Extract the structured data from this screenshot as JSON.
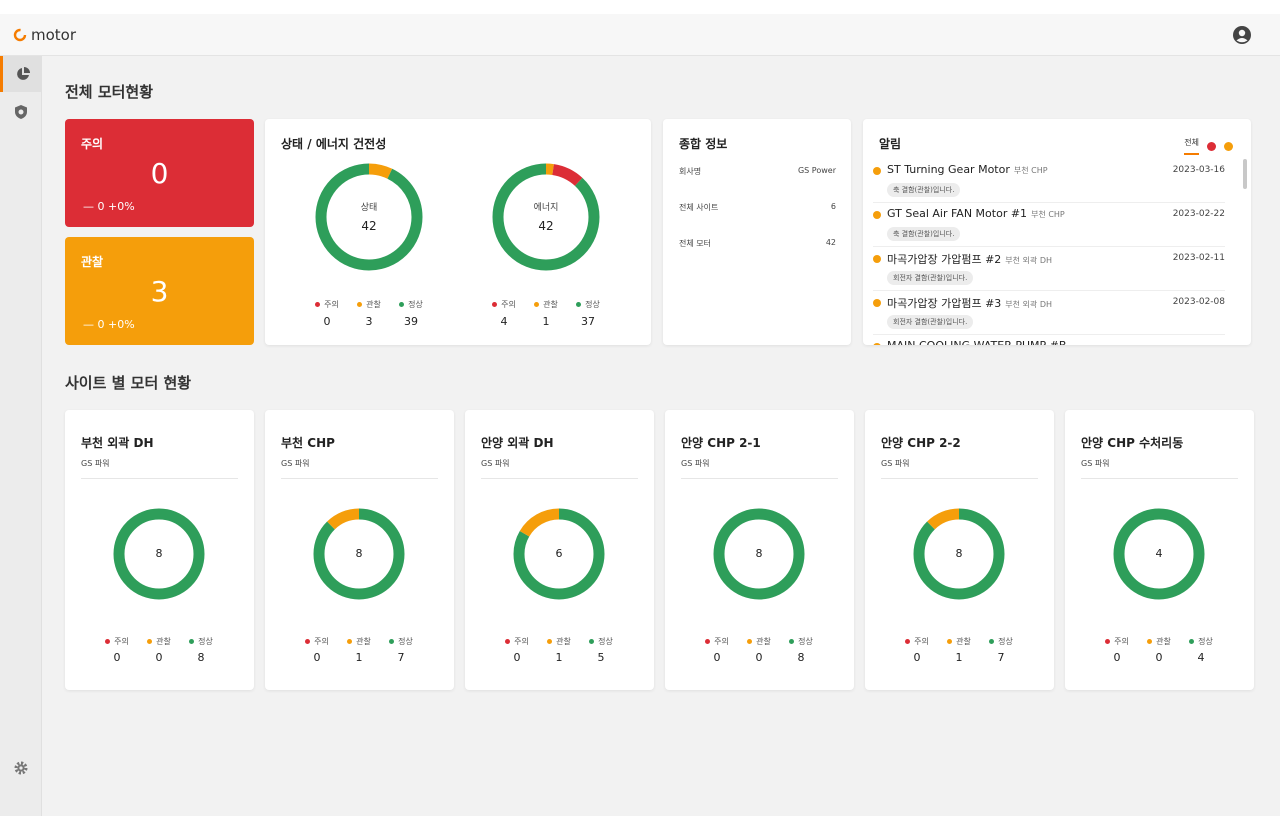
{
  "app": {
    "name": "motor"
  },
  "colors": {
    "danger": "#dc2d36",
    "warning": "#f59e0b",
    "normal": "#2e9e5a",
    "accent": "#f57c00"
  },
  "sidebar": {
    "items": [
      {
        "icon": "pie-chart-icon",
        "active": true
      },
      {
        "icon": "shield-icon",
        "active": false
      },
      {
        "icon": "gear-icon",
        "active": false
      }
    ]
  },
  "overview": {
    "title": "전체 모터현황",
    "danger": {
      "label": "주의",
      "value": "0",
      "delta": "— 0  +0%"
    },
    "warning": {
      "label": "관찰",
      "value": "3",
      "delta": "— 0  +0%"
    },
    "health": {
      "title": "상태 / 에너지 건전성",
      "donuts": [
        {
          "label": "상태",
          "total": "42",
          "danger": 0,
          "warning": 3,
          "normal": 39
        },
        {
          "label": "에너지",
          "total": "42",
          "danger": 4,
          "warning": 1,
          "normal": 37
        }
      ]
    },
    "legend": {
      "danger": "주의",
      "warning": "관찰",
      "normal": "정상"
    },
    "info": {
      "title": "종합 정보",
      "rows": [
        {
          "label": "회사명",
          "value": "GS Power"
        },
        {
          "label": "전체 사이트",
          "value": "6"
        },
        {
          "label": "전체 모터",
          "value": "42"
        }
      ]
    },
    "alerts": {
      "title": "알림",
      "tab_all": "전체",
      "items": [
        {
          "name": "ST Turning Gear Motor",
          "site": "부천 CHP",
          "date": "2023-03-16",
          "tag": "축 결함(관찰)입니다."
        },
        {
          "name": "GT Seal Air FAN Motor #1",
          "site": "부천 CHP",
          "date": "2023-02-22",
          "tag": "축 결함(관찰)입니다."
        },
        {
          "name": "마곡가압장 가압펌프 #2",
          "site": "부천 외곽 DH",
          "date": "2023-02-11",
          "tag": "회전자 결함(관찰)입니다."
        },
        {
          "name": "마곡가압장 가압펌프 #3",
          "site": "부천 외곽 DH",
          "date": "2023-02-08",
          "tag": "회전자 결함(관찰)입니다."
        },
        {
          "name": "MAIN COOLING WATER PUMP #B",
          "site": "",
          "date": "",
          "tag": ""
        }
      ]
    }
  },
  "sites": {
    "title": "사이트 별 모터 현황",
    "items": [
      {
        "name": "부천 외곽 DH",
        "company": "GS 파워",
        "total": "8",
        "danger": 0,
        "warning": 0,
        "normal": 8
      },
      {
        "name": "부천 CHP",
        "company": "GS 파워",
        "total": "8",
        "danger": 0,
        "warning": 1,
        "normal": 7
      },
      {
        "name": "안양 외곽 DH",
        "company": "GS 파워",
        "total": "6",
        "danger": 0,
        "warning": 1,
        "normal": 5
      },
      {
        "name": "안양 CHP 2-1",
        "company": "GS 파워",
        "total": "8",
        "danger": 0,
        "warning": 0,
        "normal": 8
      },
      {
        "name": "안양 CHP 2-2",
        "company": "GS 파워",
        "total": "8",
        "danger": 0,
        "warning": 1,
        "normal": 7
      },
      {
        "name": "안양 CHP 수처리동",
        "company": "GS 파워",
        "total": "4",
        "danger": 0,
        "warning": 0,
        "normal": 4
      }
    ]
  }
}
